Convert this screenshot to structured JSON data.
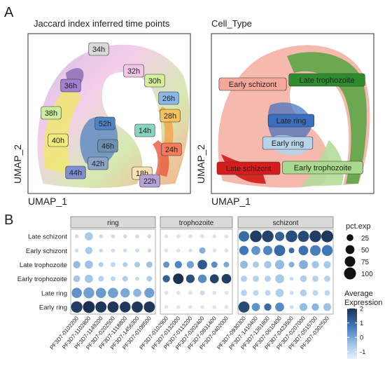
{
  "panel_a": {
    "letter": "A",
    "left_title": "Jaccard index inferred time points",
    "right_title": "Cell_Type",
    "xlabel": "UMAP_1",
    "ylabel": "UMAP_2",
    "left_labels": [
      {
        "text": "34h",
        "color": "#d9d9d9"
      },
      {
        "text": "32h",
        "color": "#f2c6e6"
      },
      {
        "text": "30h",
        "color": "#d5ef9a"
      },
      {
        "text": "36h",
        "color": "#a57fd1"
      },
      {
        "text": "26h",
        "color": "#8ab6ea"
      },
      {
        "text": "38h",
        "color": "#cdeea0"
      },
      {
        "text": "28h",
        "color": "#f6c35a"
      },
      {
        "text": "52h",
        "color": "#4f83c6"
      },
      {
        "text": "14h",
        "color": "#88d3c1"
      },
      {
        "text": "40h",
        "color": "#f4ec7a"
      },
      {
        "text": "46h",
        "color": "#6f8fb3"
      },
      {
        "text": "24h",
        "color": "#f47a5c"
      },
      {
        "text": "42h",
        "color": "#88a4c8"
      },
      {
        "text": "44h",
        "color": "#7e8fcf"
      },
      {
        "text": "18h",
        "color": "#fbe2b3"
      },
      {
        "text": "22h",
        "color": "#b6a2d9"
      }
    ],
    "right_labels": [
      {
        "text": "Early schizont",
        "color": "#f4a79b"
      },
      {
        "text": "Late trophozoite",
        "color": "#2e8b2e"
      },
      {
        "text": "Late ring",
        "color": "#3a6fbf"
      },
      {
        "text": "Early ring",
        "color": "#b7d3ea"
      },
      {
        "text": "Late schizont",
        "color": "#d61c1c"
      },
      {
        "text": "Early trophozoite",
        "color": "#a9d98d"
      }
    ]
  },
  "panel_b": {
    "letter": "B",
    "size_legend": {
      "title": "pct.exp",
      "values": [
        25,
        50,
        75,
        100
      ]
    },
    "color_legend": {
      "title_line1": "Average",
      "title_line2": "Expression",
      "ticks": [
        2,
        1,
        0,
        -1
      ],
      "low_color": "#e9f2fb",
      "high_color": "#1b3152"
    }
  },
  "chart_data": {
    "type": "dot",
    "facets": [
      "ring",
      "trophozoite",
      "schizont"
    ],
    "genes": [
      [
        "PF3D7-0102200",
        "PF3D7-1102800",
        "PF3D7-1149200",
        "PF3D7-0202500",
        "PF3D7-1118800",
        "PF3D7-1456300",
        "PF3D7-0108500"
      ],
      [
        "PF3D7-0102900",
        "PF3D7-0132000",
        "PF3D7-0113200",
        "PF3D7-0202400",
        "PF3D7-0831400",
        "PF3D7-0402000"
      ],
      [
        "PF3D7-0930300",
        "PF3D7-1410400",
        "PF3D7-1361800",
        "PF3D7-0610400",
        "PF3D7-0423500",
        "PF3D7-0207000",
        "PF3D7-0515700",
        "PF3D7-0302500"
      ]
    ],
    "rows": [
      "Late schizont",
      "Early schizont",
      "Late trophozoite",
      "Early trophozoite",
      "Late ring",
      "Early ring"
    ],
    "size_range": [
      25,
      100
    ],
    "color_range": [
      -1.5,
      2
    ],
    "pct_exp": [
      [
        [
          5,
          40,
          5,
          5,
          5,
          5,
          5
        ],
        [
          5,
          5,
          5,
          5,
          5,
          5
        ],
        [
          75,
          95,
          95,
          55,
          95,
          85,
          95,
          100
        ]
      ],
      [
        [
          5,
          30,
          5,
          5,
          5,
          5,
          5
        ],
        [
          5,
          5,
          5,
          20,
          5,
          5
        ],
        [
          55,
          50,
          55,
          85,
          15,
          60,
          75,
          80
        ]
      ],
      [
        [
          30,
          40,
          10,
          10,
          10,
          15,
          20
        ],
        [
          20,
          30,
          30,
          60,
          20,
          15
        ],
        [
          35,
          20,
          30,
          55,
          15,
          50,
          30,
          30
        ]
      ],
      [
        [
          25,
          40,
          15,
          10,
          15,
          5,
          15
        ],
        [
          30,
          75,
          45,
          45,
          50,
          60
        ],
        [
          20,
          20,
          20,
          50,
          5,
          25,
          20,
          20
        ]
      ],
      [
        [
          70,
          80,
          70,
          70,
          55,
          40,
          65
        ],
        [
          5,
          5,
          5,
          10,
          5,
          5
        ],
        [
          20,
          15,
          15,
          40,
          5,
          25,
          15,
          15
        ]
      ],
      [
        [
          90,
          100,
          85,
          85,
          80,
          85,
          85
        ],
        [
          5,
          5,
          5,
          5,
          5,
          5
        ],
        [
          85,
          40,
          30,
          50,
          5,
          35,
          30,
          35
        ]
      ]
    ],
    "avg_exp": [
      [
        [
          -1,
          -0.5,
          -1,
          -1,
          -1,
          -1,
          -1
        ],
        [
          -1.2,
          -1.2,
          -1.2,
          -1.2,
          -1.2,
          -1.2
        ],
        [
          1,
          1.8,
          1.7,
          1.2,
          1.5,
          1.6,
          1.8,
          1.9
        ]
      ],
      [
        [
          -1,
          -0.5,
          -1,
          -1,
          -1,
          -1,
          -1
        ],
        [
          -1.2,
          -1.2,
          -1.2,
          0,
          -1.2,
          -1.2
        ],
        [
          0.8,
          0.4,
          0.6,
          1,
          1,
          0.9,
          0.7,
          0.8
        ]
      ],
      [
        [
          -0.2,
          -0.3,
          -0.6,
          -0.8,
          -0.6,
          -0.5,
          -0.3
        ],
        [
          0.4,
          0.6,
          0.2,
          1.3,
          0.5,
          0.1
        ],
        [
          -0.2,
          -0.5,
          -0.4,
          -0.2,
          0,
          0,
          -0.4,
          -0.5
        ]
      ],
      [
        [
          -0.4,
          -0.4,
          -0.7,
          -0.8,
          -0.6,
          -0.9,
          -0.6
        ],
        [
          1.2,
          2,
          1.5,
          0.5,
          1.7,
          1.8
        ],
        [
          -0.6,
          -0.7,
          -0.7,
          -0.5,
          -1,
          -0.6,
          -0.7,
          -0.7
        ]
      ],
      [
        [
          0.4,
          0.2,
          0.3,
          0.2,
          0.1,
          -0.1,
          0.2
        ],
        [
          -1.2,
          -1.2,
          -1.2,
          -1,
          -1.2,
          -1.2
        ],
        [
          -0.7,
          -0.8,
          -0.8,
          -0.6,
          -1,
          -0.6,
          -0.8,
          -0.8
        ]
      ],
      [
        [
          1.8,
          2,
          1.9,
          1.9,
          1.9,
          1.9,
          1.9
        ],
        [
          -1.2,
          -1.2,
          -1.2,
          -1.2,
          -1.2,
          -1.2
        ],
        [
          1.6,
          0.4,
          1,
          0.5,
          -1,
          -0.2,
          -0.1,
          -0.3
        ]
      ]
    ]
  }
}
